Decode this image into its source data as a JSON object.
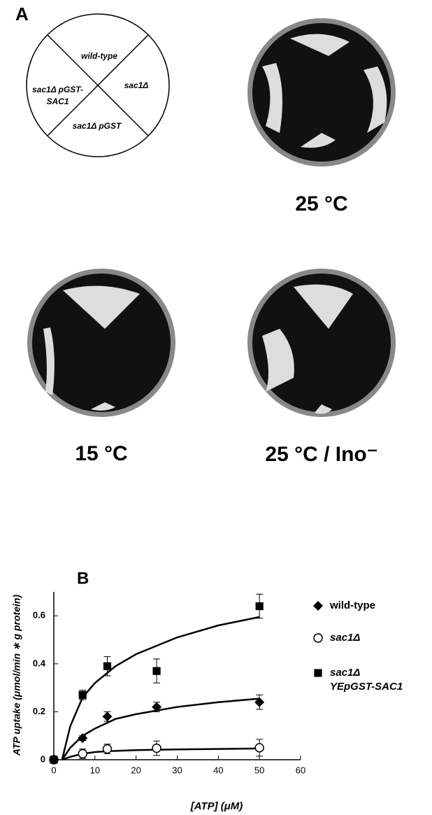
{
  "panel_a": {
    "label": "A",
    "sectors": [
      "wild-type",
      "sac1Δ",
      "sac1Δ pGST",
      "sac1Δ pGST-SAC1"
    ],
    "conditions": [
      "25 °C",
      "15 °C",
      "25 °C / Ino⁻"
    ]
  },
  "chart_data": {
    "type": "scatter",
    "panel_label": "B",
    "x_label": "[ATP] (μM)",
    "y_label": "ATP uptake (μmol/min ∗ g protein)",
    "xlim": [
      0,
      60
    ],
    "xticks": [
      0,
      10,
      20,
      30,
      40,
      50,
      60
    ],
    "ylim": [
      0,
      0.7
    ],
    "yticks": [
      0,
      0.2,
      0.4,
      0.6
    ],
    "x": [
      0,
      7,
      13,
      25,
      50
    ],
    "curve_x": [
      2,
      4,
      7,
      10,
      15,
      20,
      30,
      40,
      50
    ],
    "series": [
      {
        "name": "wild-type",
        "marker": "diamond",
        "color": "#000000",
        "values": [
          0,
          0.09,
          0.18,
          0.22,
          0.24
        ],
        "errors": [
          0,
          0.01,
          0.02,
          0.02,
          0.03
        ],
        "curve": [
          0,
          0.05,
          0.1,
          0.13,
          0.17,
          0.19,
          0.22,
          0.24,
          0.255
        ]
      },
      {
        "name": "sac1Δ",
        "marker": "circle",
        "color": "#000000",
        "values": [
          0,
          0.025,
          0.045,
          0.048,
          0.05
        ],
        "errors": [
          0,
          0.02,
          0.02,
          0.03,
          0.035
        ],
        "curve": [
          0,
          0.012,
          0.025,
          0.032,
          0.037,
          0.04,
          0.043,
          0.045,
          0.047
        ]
      },
      {
        "name": "sac1Δ YEpGST-SAC1",
        "marker": "square",
        "color": "#000000",
        "values": [
          0,
          0.27,
          0.39,
          0.37,
          0.64
        ],
        "errors": [
          0,
          0.02,
          0.04,
          0.05,
          0.05
        ],
        "curve": [
          0,
          0.14,
          0.26,
          0.32,
          0.39,
          0.44,
          0.51,
          0.56,
          0.595
        ]
      }
    ]
  }
}
